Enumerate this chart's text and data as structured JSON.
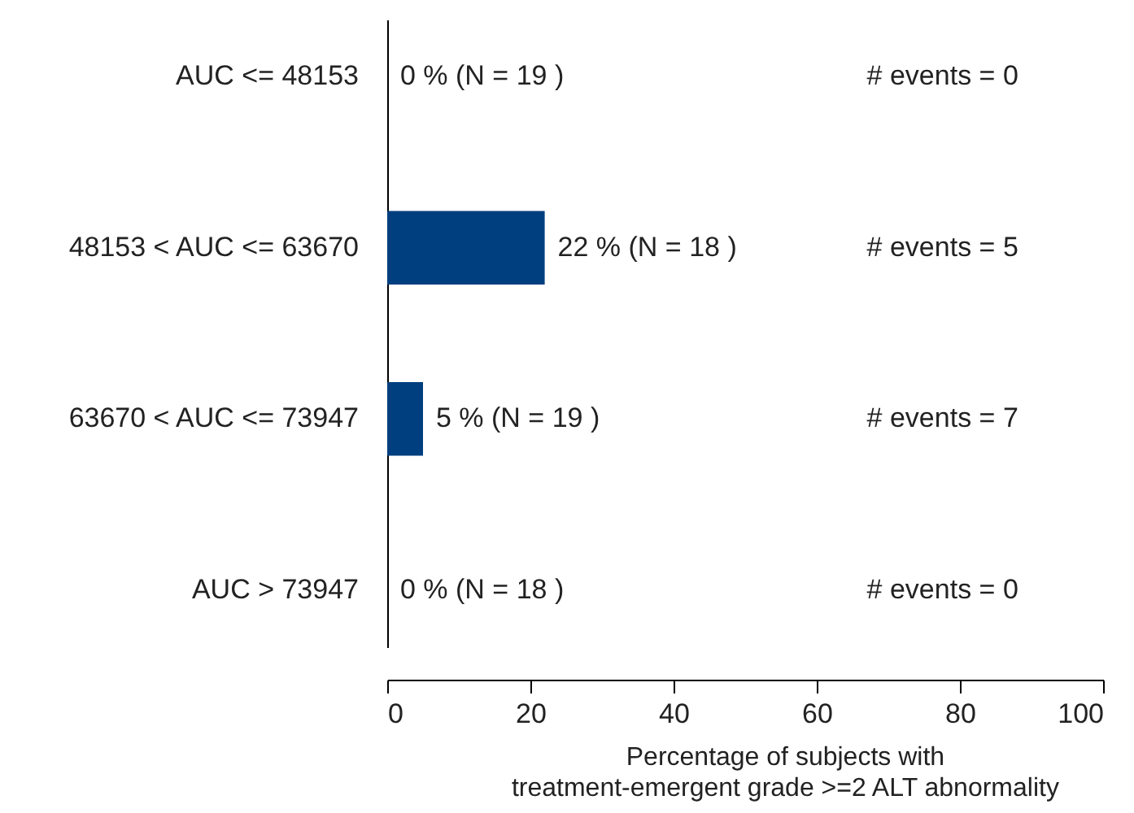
{
  "chart_data": {
    "type": "bar",
    "orientation": "horizontal",
    "categories": [
      "AUC <= 48153",
      "48153 < AUC <= 63670",
      "63670 < AUC <= 73947",
      "AUC > 73947"
    ],
    "values": [
      0,
      22,
      5,
      0
    ],
    "color": "#003f7f",
    "value_labels": [
      "0 % (N = 19 )",
      "22 % (N = 18 )",
      "5 % (N = 19 )",
      "0 % (N = 18 )"
    ],
    "xlim": [
      0,
      100
    ],
    "xticks": [
      0,
      20,
      40,
      60,
      80,
      100
    ],
    "xlabel": "Percentage of subjects with\ntreatment-emergent grade >=2 ALT abnormality",
    "annotations": [
      "# events = 0",
      "# events = 5",
      "# events = 7",
      "# events = 0"
    ]
  }
}
